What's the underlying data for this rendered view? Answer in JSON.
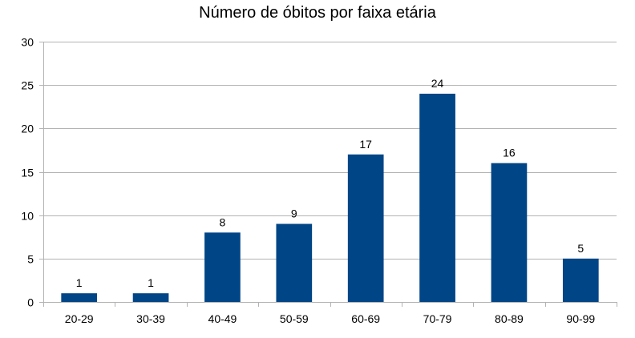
{
  "chart_data": {
    "type": "bar",
    "title": "Número de óbitos por faixa etária",
    "xlabel": "",
    "ylabel": "",
    "categories": [
      "20-29",
      "30-39",
      "40-49",
      "50-59",
      "60-69",
      "70-79",
      "80-89",
      "90-99"
    ],
    "values": [
      1,
      1,
      8,
      9,
      17,
      24,
      16,
      5
    ],
    "ylim": [
      0,
      30
    ],
    "yticks": [
      0,
      5,
      10,
      15,
      20,
      25,
      30
    ],
    "grid": true,
    "legend": "none",
    "data_labels": true,
    "bar_color": "#004586"
  }
}
